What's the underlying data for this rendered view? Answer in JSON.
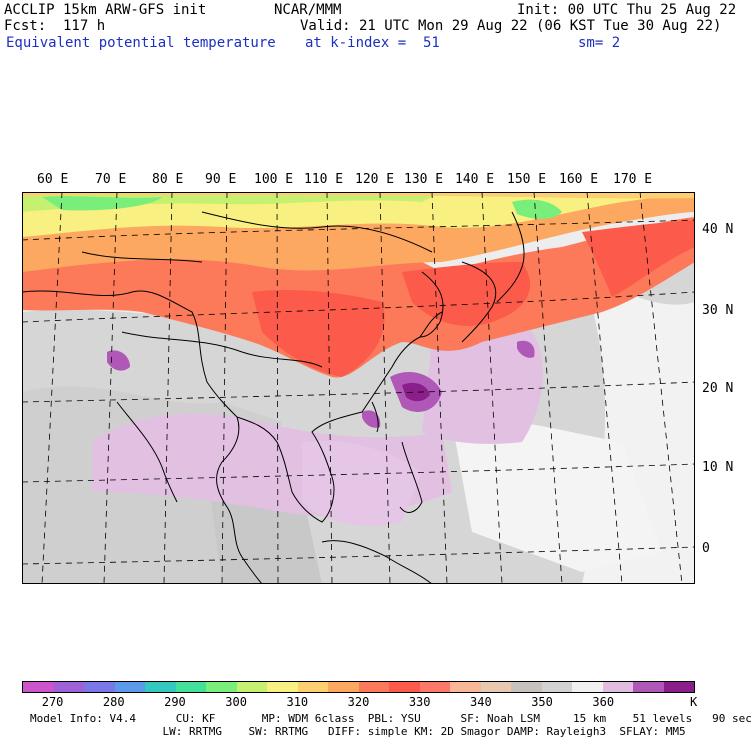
{
  "header": {
    "model": "ACCLIP 15km ARW-GFS init",
    "center": "NCAR/MMM",
    "init": "Init: 00 UTC Thu 25 Aug 22",
    "fcst": "Fcst:  117 h",
    "valid": "Valid: 21 UTC Mon 29 Aug 22 (06 KST Tue 30 Aug 22)",
    "field": "Equivalent potential temperature",
    "level": "at k-index =  51",
    "smooth": "sm= 2"
  },
  "longitude_labels": [
    "60 E",
    "70 E",
    "80 E",
    "90 E",
    "100 E",
    "110 E",
    "120 E",
    "130 E",
    "140 E",
    "150 E",
    "160 E",
    "170 E"
  ],
  "latitude_labels": [
    "40 N",
    "30 N",
    "20 N",
    "10 N",
    "0"
  ],
  "colorbar": {
    "colors": [
      "#cc55cc",
      "#a060d8",
      "#7a78e8",
      "#5a9ae8",
      "#33c8c0",
      "#44e09a",
      "#7aee7a",
      "#c6f070",
      "#f8f080",
      "#fcd070",
      "#fca860",
      "#fc7a5a",
      "#fc5a4a",
      "#fc7868",
      "#f8b898",
      "#e8c8b0",
      "#c8c2bc",
      "#d2d2d2",
      "#f0f0f0",
      "#e0bce0",
      "#b058b8",
      "#8a1e8a"
    ],
    "ticks": [
      "270",
      "280",
      "290",
      "300",
      "310",
      "320",
      "330",
      "340",
      "350",
      "360"
    ],
    "unit": "K"
  },
  "model_info": {
    "line1": "Model Info: V4.4      CU: KF       MP: WDM 6class  PBL: YSU      SF: Noah LSM     15 km    51 levels   90 sec",
    "line2": "                    LW: RRTMG    SW: RRTMG   DIFF: simple KM: 2D Smagor DAMP: Rayleigh3  SFLAY: MM5"
  }
}
